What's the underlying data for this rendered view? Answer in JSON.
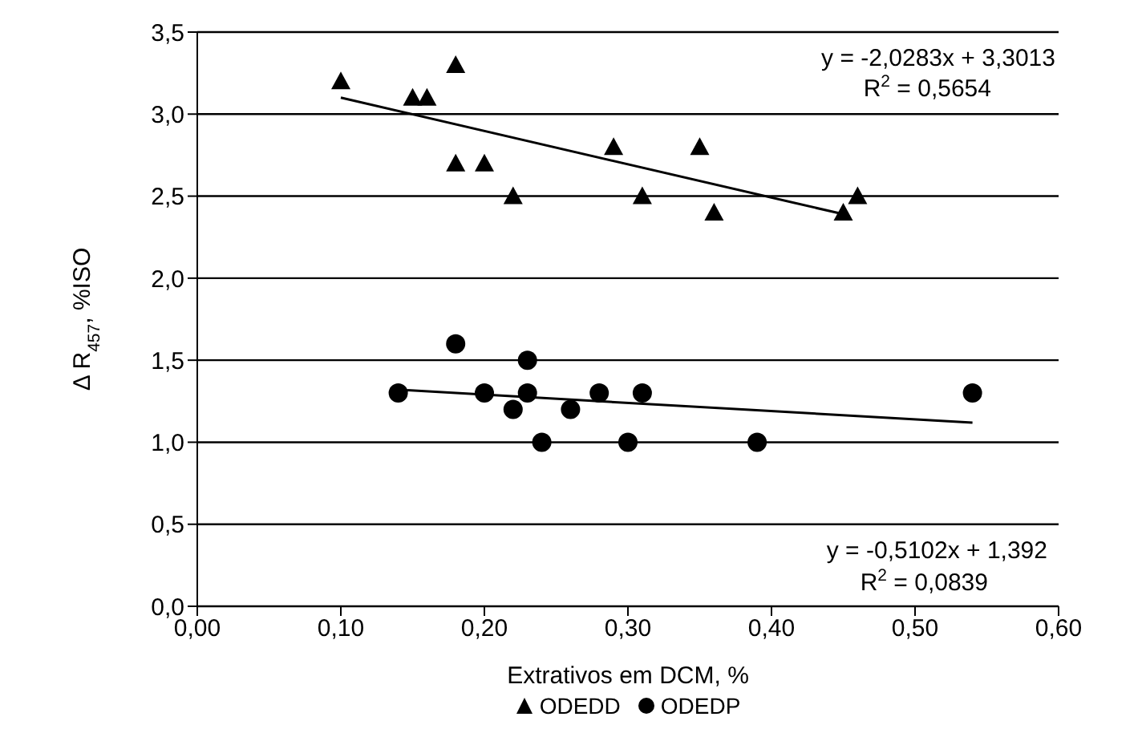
{
  "chart_data": {
    "type": "scatter",
    "xlabel": "Extrativos em DCM, %",
    "ylabel": "Δ R$_{457}$, %ISO",
    "xlim": [
      0,
      0.6
    ],
    "xticks": [
      {
        "value": 0,
        "label": "0,00"
      },
      {
        "value": 0.1,
        "label": "0,10"
      },
      {
        "value": 0.2,
        "label": "0,20"
      },
      {
        "value": 0.3,
        "label": "0,30"
      },
      {
        "value": 0.4,
        "label": "0,40"
      },
      {
        "value": 0.5,
        "label": "0,50"
      },
      {
        "value": 0.6,
        "label": "0,60"
      }
    ],
    "ylim": [
      0,
      3.5
    ],
    "yticks": [
      {
        "value": 0,
        "label": "0,0"
      },
      {
        "value": 0.5,
        "label": "0,5"
      },
      {
        "value": 1,
        "label": "1,0"
      },
      {
        "value": 1.5,
        "label": "1,5"
      },
      {
        "value": 2,
        "label": "2,0"
      },
      {
        "value": 2.5,
        "label": "2,5"
      },
      {
        "value": 3,
        "label": "3,0"
      },
      {
        "value": 3.5,
        "label": "3,5"
      }
    ],
    "grid": "y",
    "legend": "bottom",
    "series": [
      {
        "name": "ODEDD",
        "marker": "triangle",
        "color": "#000000",
        "x": [
          0.1,
          0.15,
          0.16,
          0.18,
          0.18,
          0.2,
          0.22,
          0.29,
          0.31,
          0.35,
          0.36,
          0.45,
          0.46
        ],
        "values": [
          3.2,
          3.1,
          3.1,
          3.3,
          2.7,
          2.7,
          2.5,
          2.8,
          2.5,
          2.8,
          2.4,
          2.4,
          2.5
        ]
      },
      {
        "name": "ODEDP",
        "marker": "circle",
        "color": "#000000",
        "x": [
          0.14,
          0.18,
          0.2,
          0.22,
          0.23,
          0.23,
          0.24,
          0.26,
          0.28,
          0.3,
          0.31,
          0.39,
          0.54
        ],
        "values": [
          1.3,
          1.6,
          1.3,
          1.2,
          1.5,
          1.3,
          1.0,
          1.2,
          1.3,
          1.0,
          1.3,
          1.0,
          1.3
        ]
      },
      {
        "type": "line",
        "marker": "none",
        "color": "#000000",
        "x": [
          0.1,
          0.45
        ],
        "values": [
          3.1,
          2.39
        ]
      },
      {
        "type": "line",
        "marker": "none",
        "color": "#000000",
        "x": [
          0.14,
          0.54
        ],
        "values": [
          1.32,
          1.12
        ]
      }
    ],
    "annotations": [
      "y = -2,0283x + 3,3013",
      "R$^{2}$ = 0,5654",
      "y = -0,5102x + 1,392",
      "R$^{2}$ = 0,0839"
    ]
  }
}
